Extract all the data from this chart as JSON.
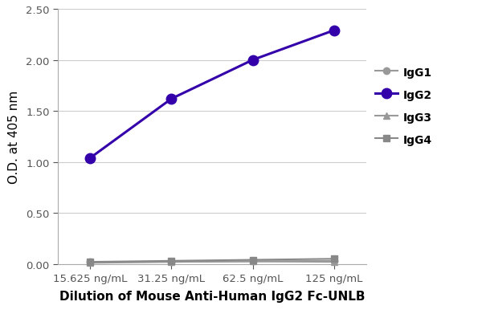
{
  "x_labels": [
    "15.625 ng/mL",
    "31.25 ng/mL",
    "62.5 ng/mL",
    "125 ng/mL"
  ],
  "x_values": [
    0,
    1,
    2,
    3
  ],
  "series": [
    {
      "name": "IgG1",
      "values": [
        0.02,
        0.02,
        0.025,
        0.03
      ],
      "color": "#999999",
      "marker": "o",
      "linewidth": 1.5,
      "markersize": 6
    },
    {
      "name": "IgG2",
      "values": [
        1.04,
        1.62,
        2.0,
        2.29
      ],
      "color": "#3300AA",
      "marker": "o",
      "linewidth": 2.2,
      "markersize": 9
    },
    {
      "name": "IgG3",
      "values": [
        0.01,
        0.02,
        0.025,
        0.02
      ],
      "color": "#999999",
      "marker": "^",
      "linewidth": 1.5,
      "markersize": 6
    },
    {
      "name": "IgG4",
      "values": [
        0.02,
        0.03,
        0.04,
        0.05
      ],
      "color": "#888888",
      "marker": "s",
      "linewidth": 1.5,
      "markersize": 6
    }
  ],
  "ylabel": "O.D. at 405 nm",
  "xlabel": "Dilution of Mouse Anti-Human IgG2 Fc-UNLB",
  "ylim": [
    0.0,
    2.5
  ],
  "yticks": [
    0.0,
    0.5,
    1.0,
    1.5,
    2.0,
    2.5
  ],
  "background_color": "#ffffff",
  "grid_color": "#cccccc",
  "axis_label_fontsize": 11,
  "tick_fontsize": 9.5,
  "legend_fontsize": 10
}
